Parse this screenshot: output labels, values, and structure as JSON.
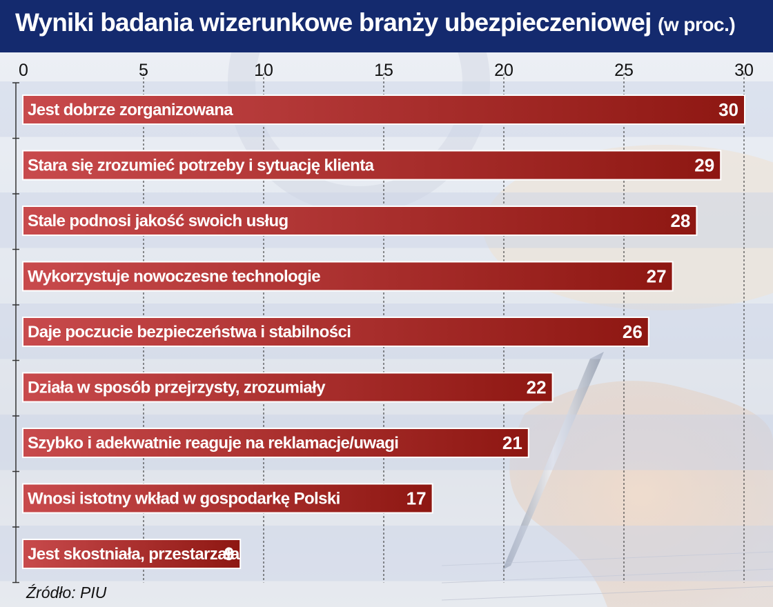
{
  "header": {
    "title": "Wyniki badania wizerunkowe branży ubezpieczeniowej",
    "title_suffix": "(w proc.)"
  },
  "source": "Źródło: PIU",
  "colors": {
    "header_bg": "#142a6e",
    "bar_light": "#c84a4c",
    "bar_dark": "#8e1712",
    "band_blue": "#c9d3e6"
  },
  "chart_data": {
    "type": "bar",
    "orientation": "horizontal",
    "title": "Wyniki badania wizerunkowe branży ubezpieczeniowej (w proc.)",
    "xlim": [
      0,
      30
    ],
    "xticks": [
      0,
      5,
      10,
      15,
      20,
      25,
      30
    ],
    "grid": "vertical dashed",
    "categories": [
      "Jest dobrze zorganizowana",
      "Stara się zrozumieć potrzeby i sytuację klienta",
      "Stale podnosi jakość swoich usług",
      "Wykorzystuje nowoczesne technologie",
      "Daje poczucie bezpieczeństwa i stabilności",
      "Działa w sposób przejrzysty, zrozumiały",
      "Szybko i adekwatnie reaguje na reklamacje/uwagi",
      "Wnosi istotny wkład w gospodarkę Polski",
      "Jest skostniała, przestarzała"
    ],
    "values": [
      30,
      29,
      28,
      27,
      26,
      22,
      21,
      17,
      9
    ]
  }
}
